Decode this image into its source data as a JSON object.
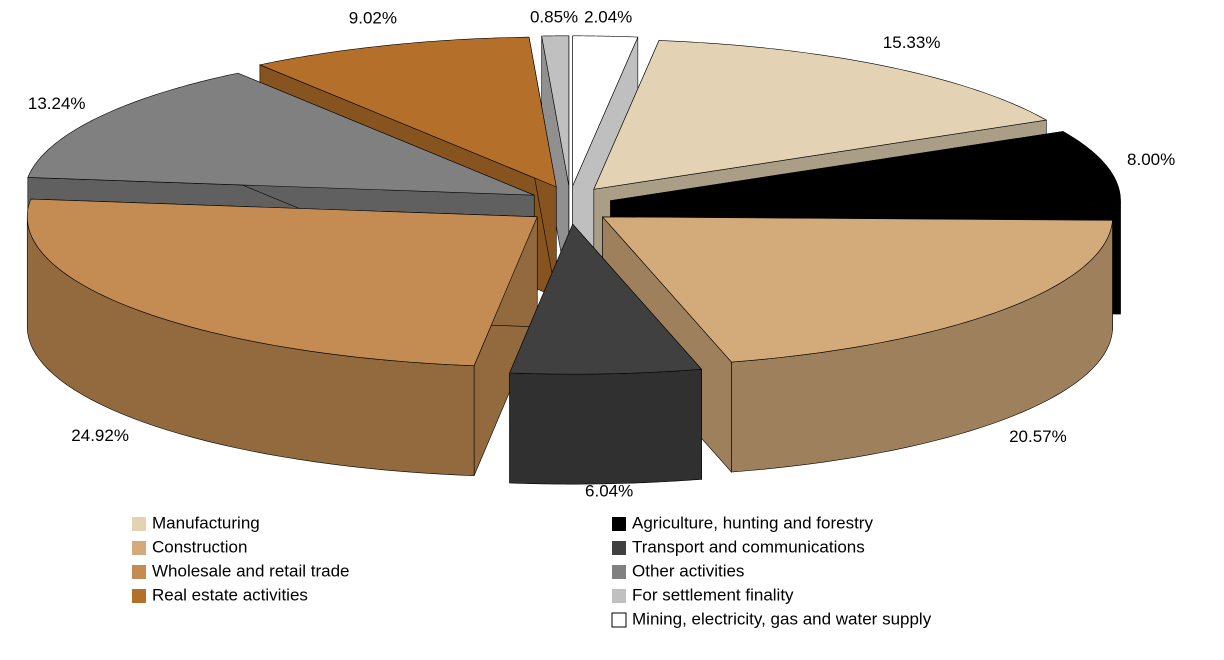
{
  "chart_data": {
    "type": "pie3d",
    "categories": [
      "Mining, electricity, gas and water supply",
      "Manufacturing",
      "Agriculture, hunting and forestry",
      "Construction",
      "Transport and communications",
      "Wholesale and retail trade",
      "Other activities",
      "Real estate activities",
      "For settlement finality"
    ],
    "values": [
      2.04,
      15.33,
      8.0,
      20.57,
      6.04,
      24.92,
      13.24,
      9.02,
      0.85
    ],
    "value_labels": [
      "2.04%",
      "15.33%",
      "8.00%",
      "20.57%",
      "6.04%",
      "24.92%",
      "13.24%",
      "9.02%",
      "0.85%"
    ],
    "colors": [
      "#ffffff",
      "#e3d2b4",
      "#000000",
      "#d3aa7a",
      "#404040",
      "#c48c52",
      "#808080",
      "#b4702a",
      "#c0c0c0"
    ],
    "legend": "bottom"
  }
}
